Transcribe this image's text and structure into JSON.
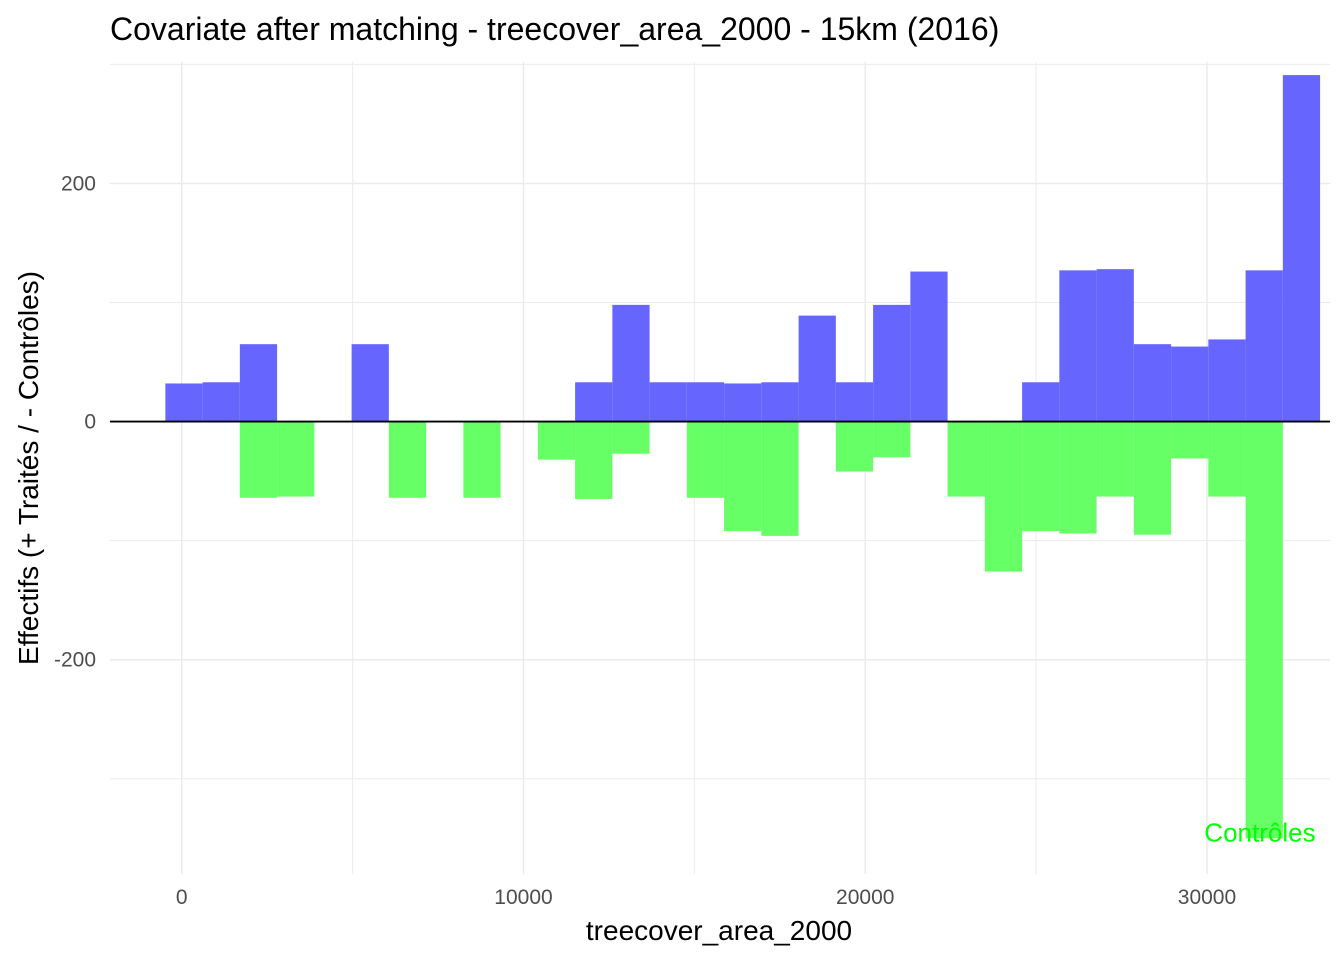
{
  "chart_data": {
    "type": "bar",
    "title": "Covariate after matching - treecover_area_2000 - 15km (2016)",
    "xlabel": "treecover_area_2000",
    "ylabel": "Effectifs (+ Traités / - Contrôles)",
    "xlim": [
      -2100,
      33600
    ],
    "ylim": [
      -380,
      302
    ],
    "x_ticks": [
      {
        "value": 0,
        "label": "0"
      },
      {
        "value": 10000,
        "label": "10000"
      },
      {
        "value": 20000,
        "label": "20000"
      },
      {
        "value": 30000,
        "label": "30000"
      }
    ],
    "y_ticks": [
      {
        "value": -200,
        "label": "-200"
      },
      {
        "value": 0,
        "label": "0"
      },
      {
        "value": 200,
        "label": "200"
      }
    ],
    "x_minor_breaks": [
      5000,
      15000,
      25000
    ],
    "y_minor_breaks": [
      -300,
      -100,
      100,
      300
    ],
    "grid": true,
    "bin_width": 1090,
    "bin_start": -480,
    "colors": {
      "treated": "#6666ff",
      "control": "#66ff66",
      "zero_line": "#000000",
      "grid": "#ebebeb",
      "annotation": "#00ff00"
    },
    "series": [
      {
        "values": [
          32,
          33,
          65,
          0,
          0,
          65,
          0,
          0,
          0,
          0,
          0,
          33,
          98,
          33,
          33,
          32,
          33,
          89,
          33,
          98,
          126,
          0,
          0,
          33,
          127,
          128,
          65,
          63,
          69,
          127,
          291
        ]
      },
      {
        "values": [
          0,
          0,
          -64,
          -63,
          0,
          0,
          -64,
          0,
          -64,
          0,
          -32,
          -65,
          -27,
          0,
          -64,
          -92,
          -96,
          0,
          -42,
          -30,
          0,
          -63,
          -126,
          -92,
          -94,
          -63,
          -95,
          -31,
          -63,
          -350,
          0
        ]
      }
    ],
    "annotations": [
      {
        "text": "Contrôles",
        "x": 31550,
        "y": -345
      }
    ]
  }
}
